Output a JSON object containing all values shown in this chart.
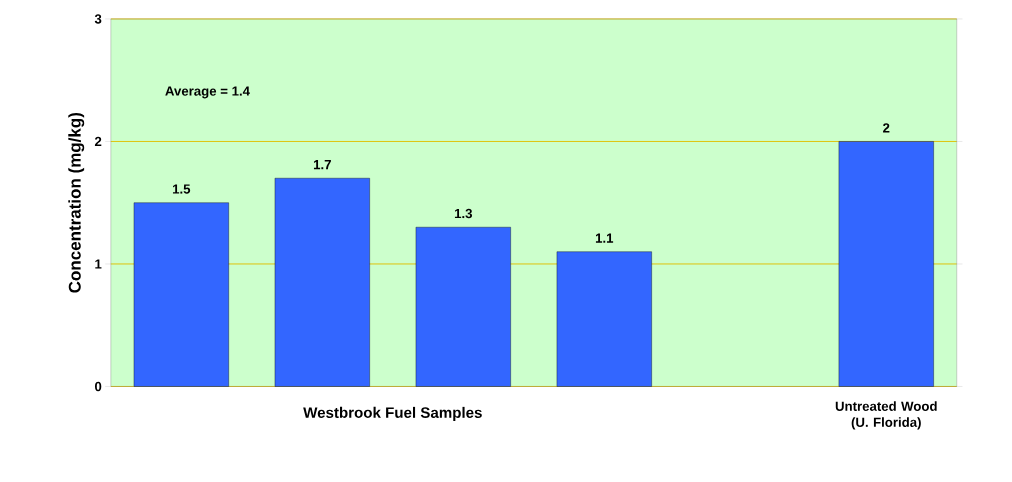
{
  "chart_data": {
    "type": "bar",
    "ylabel": "Concentration (mg/kg)",
    "xlabel": "Westbrook Fuel Samples",
    "categories": [
      null,
      null,
      null,
      null,
      null,
      "Untreated Wood (U. Florida)"
    ],
    "values": [
      1.5,
      1.7,
      1.3,
      1.1,
      null,
      2
    ],
    "color": "#3366ff",
    "data_labels": true,
    "grid": "y",
    "ylim": [
      0,
      3
    ],
    "yticks": [
      0,
      1,
      2,
      3
    ],
    "annotations": [
      "Average = 1.4"
    ]
  }
}
